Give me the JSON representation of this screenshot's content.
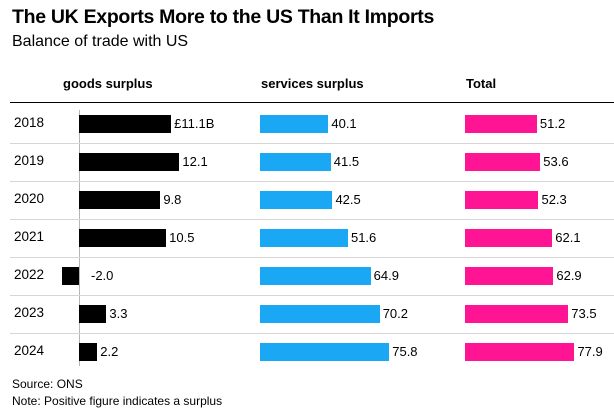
{
  "title": "The UK Exports More to the US Than It Imports",
  "subtitle": "Balance of trade with US",
  "source": "Source: ONS",
  "note": "Note: Positive figure indicates a surplus",
  "colors": {
    "goods": "#000000",
    "services": "#1aa8f5",
    "total": "#ff1493"
  },
  "chart_data": {
    "type": "bar",
    "orientation": "horizontal",
    "categories": [
      "2018",
      "2019",
      "2020",
      "2021",
      "2022",
      "2023",
      "2024"
    ],
    "series": [
      {
        "name": "goods surplus",
        "values": [
          11.1,
          12.1,
          9.8,
          10.5,
          -2.0,
          3.3,
          2.2
        ],
        "labels": [
          "£11.1B",
          "12.1",
          "9.8",
          "10.5",
          "-2.0",
          "3.3",
          "2.2"
        ]
      },
      {
        "name": "services surplus",
        "values": [
          40.1,
          41.5,
          42.5,
          51.6,
          64.9,
          70.2,
          75.8
        ],
        "labels": [
          "40.1",
          "41.5",
          "42.5",
          "51.6",
          "64.9",
          "70.2",
          "75.8"
        ]
      },
      {
        "name": "Total",
        "values": [
          51.2,
          53.6,
          52.3,
          62.1,
          62.9,
          73.5,
          77.9
        ],
        "labels": [
          "51.2",
          "53.6",
          "52.3",
          "62.1",
          "62.9",
          "73.5",
          "77.9"
        ]
      }
    ],
    "unit": "£B"
  }
}
